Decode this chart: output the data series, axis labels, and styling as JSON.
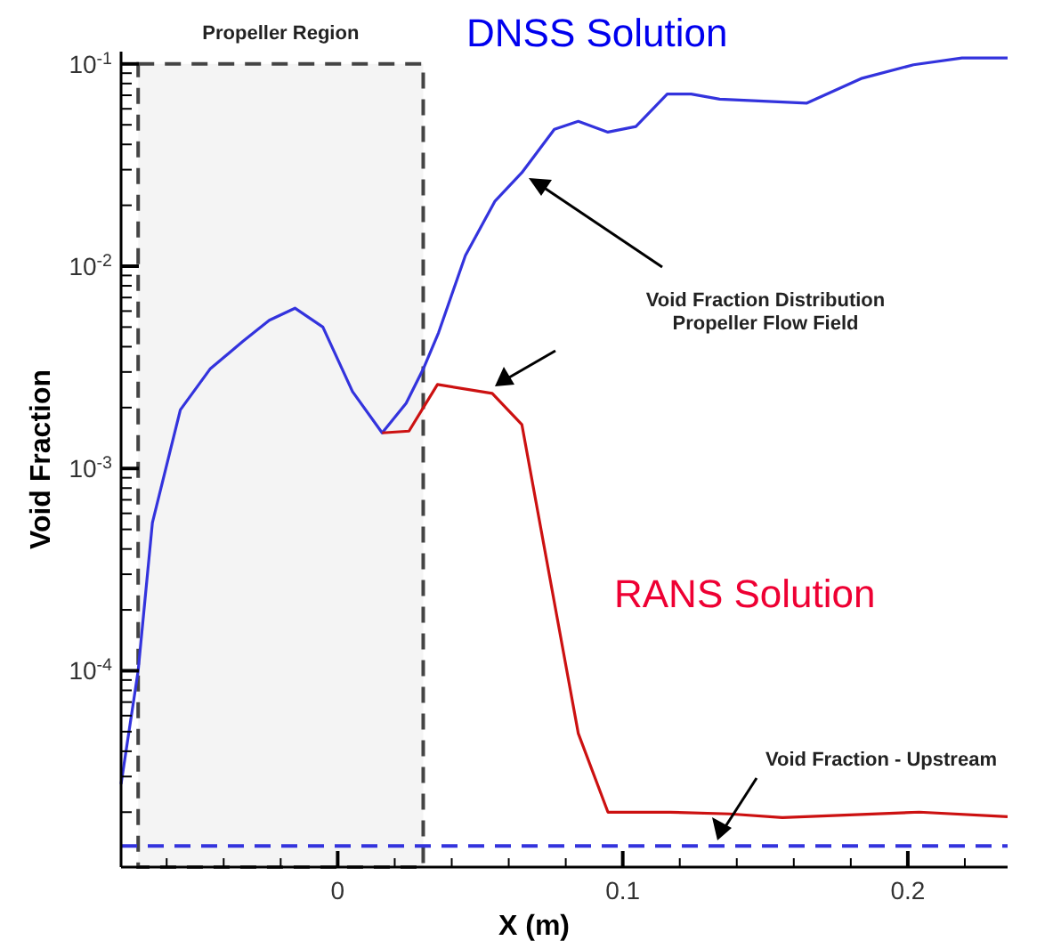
{
  "chart_data": {
    "type": "line",
    "xlabel": "X (m)",
    "ylabel": "Void Fraction",
    "log": "y",
    "xlim": [
      -0.076,
      0.235
    ],
    "ylim": [
      1.07e-05,
      0.115
    ],
    "xticks": [
      {
        "value": -0.06,
        "label": null
      },
      {
        "value": -0.04,
        "label": null
      },
      {
        "value": -0.02,
        "label": null
      },
      0,
      {
        "value": 0.02,
        "label": null
      },
      {
        "value": 0.04,
        "label": null
      },
      {
        "value": 0.06,
        "label": null
      },
      {
        "value": 0.08,
        "label": null
      },
      0.1,
      {
        "value": 0.12,
        "label": null
      },
      {
        "value": 0.14,
        "label": null
      },
      {
        "value": 0.16,
        "label": null
      },
      {
        "value": 0.18,
        "label": null
      },
      0.2,
      {
        "value": 0.22,
        "label": null
      }
    ],
    "yticks": [
      {
        "value": 2e-05,
        "label": null
      },
      {
        "value": 3e-05,
        "label": null
      },
      {
        "value": 4e-05,
        "label": null
      },
      {
        "value": 5e-05,
        "label": null
      },
      {
        "value": 6e-05,
        "label": null
      },
      {
        "value": 7e-05,
        "label": null
      },
      {
        "value": 8e-05,
        "label": null
      },
      {
        "value": 9e-05,
        "label": null
      },
      {
        "value": 0.0001,
        "label": "10$^{-4}$"
      },
      {
        "value": 0.0002,
        "label": null
      },
      {
        "value": 0.0003,
        "label": null
      },
      {
        "value": 0.0004,
        "label": null
      },
      {
        "value": 0.0005,
        "label": null
      },
      {
        "value": 0.0006,
        "label": null
      },
      {
        "value": 0.0007,
        "label": null
      },
      {
        "value": 0.0008,
        "label": null
      },
      {
        "value": 0.0009,
        "label": null
      },
      {
        "value": 0.001,
        "label": "10$^{-3}$"
      },
      {
        "value": 0.002,
        "label": null
      },
      {
        "value": 0.003,
        "label": null
      },
      {
        "value": 0.004,
        "label": null
      },
      {
        "value": 0.005,
        "label": null
      },
      {
        "value": 0.006,
        "label": null
      },
      {
        "value": 0.007,
        "label": null
      },
      {
        "value": 0.008,
        "label": null
      },
      {
        "value": 0.009,
        "label": null
      },
      {
        "value": 0.01,
        "label": "10$^{-2}$"
      },
      {
        "value": 0.02,
        "label": null
      },
      {
        "value": 0.03,
        "label": null
      },
      {
        "value": 0.04,
        "label": null
      },
      {
        "value": 0.05,
        "label": null
      },
      {
        "value": 0.06,
        "label": null
      },
      {
        "value": 0.07,
        "label": null
      },
      {
        "value": 0.08,
        "label": null
      },
      {
        "value": 0.09,
        "label": null
      },
      {
        "value": 0.1,
        "label": "10$^{-1}$"
      }
    ],
    "marker": "none",
    "line_style": "solid",
    "series": [
      {
        "name": "DNSS Solution",
        "color": "#3333dd",
        "x": [
          -0.076,
          -0.07,
          -0.065,
          -0.0552,
          -0.0448,
          -0.0333,
          -0.024,
          -0.015,
          -0.0052,
          0.0052,
          0.0156,
          0.024,
          0.03,
          0.0354,
          0.0448,
          0.0552,
          0.0646,
          0.076,
          0.0844,
          0.0948,
          0.1046,
          0.1156,
          0.124,
          0.134,
          0.1646,
          0.184,
          0.202,
          0.219,
          0.235
        ],
        "values": [
          2.75e-05,
          0.0001,
          0.00054,
          0.00195,
          0.0031,
          0.00425,
          0.0054,
          0.0062,
          0.005,
          0.0024,
          0.0015,
          0.0021,
          0.0031,
          0.0047,
          0.0113,
          0.021,
          0.029,
          0.0475,
          0.052,
          0.046,
          0.049,
          0.071,
          0.071,
          0.067,
          0.064,
          0.085,
          0.099,
          0.107,
          0.107
        ]
      },
      {
        "name": "RANS Solution",
        "color": "#cc1111",
        "x": [
          0.0156,
          0.025,
          0.035,
          0.0542,
          0.0646,
          0.0844,
          0.0948,
          0.1167,
          0.1375,
          0.156,
          0.204,
          0.235
        ],
        "values": [
          0.0015,
          0.00153,
          0.0026,
          0.00235,
          0.00165,
          4.9e-05,
          2e-05,
          2e-05,
          1.96e-05,
          1.88e-05,
          2e-05,
          1.9e-05
        ]
      }
    ],
    "ref_lines": [
      {
        "axis": "y",
        "value": 1.36e-05,
        "color": "#3333dd",
        "line_style": "dashed"
      }
    ],
    "bands": [
      {
        "axis": "x",
        "from": -0.07,
        "to": 0.03,
        "label": "Propeller Region",
        "color": "#444444"
      }
    ],
    "annotations": [
      "Void Fraction Distribution\nPropeller Flow Field",
      "Void Fraction - Upstream"
    ]
  }
}
